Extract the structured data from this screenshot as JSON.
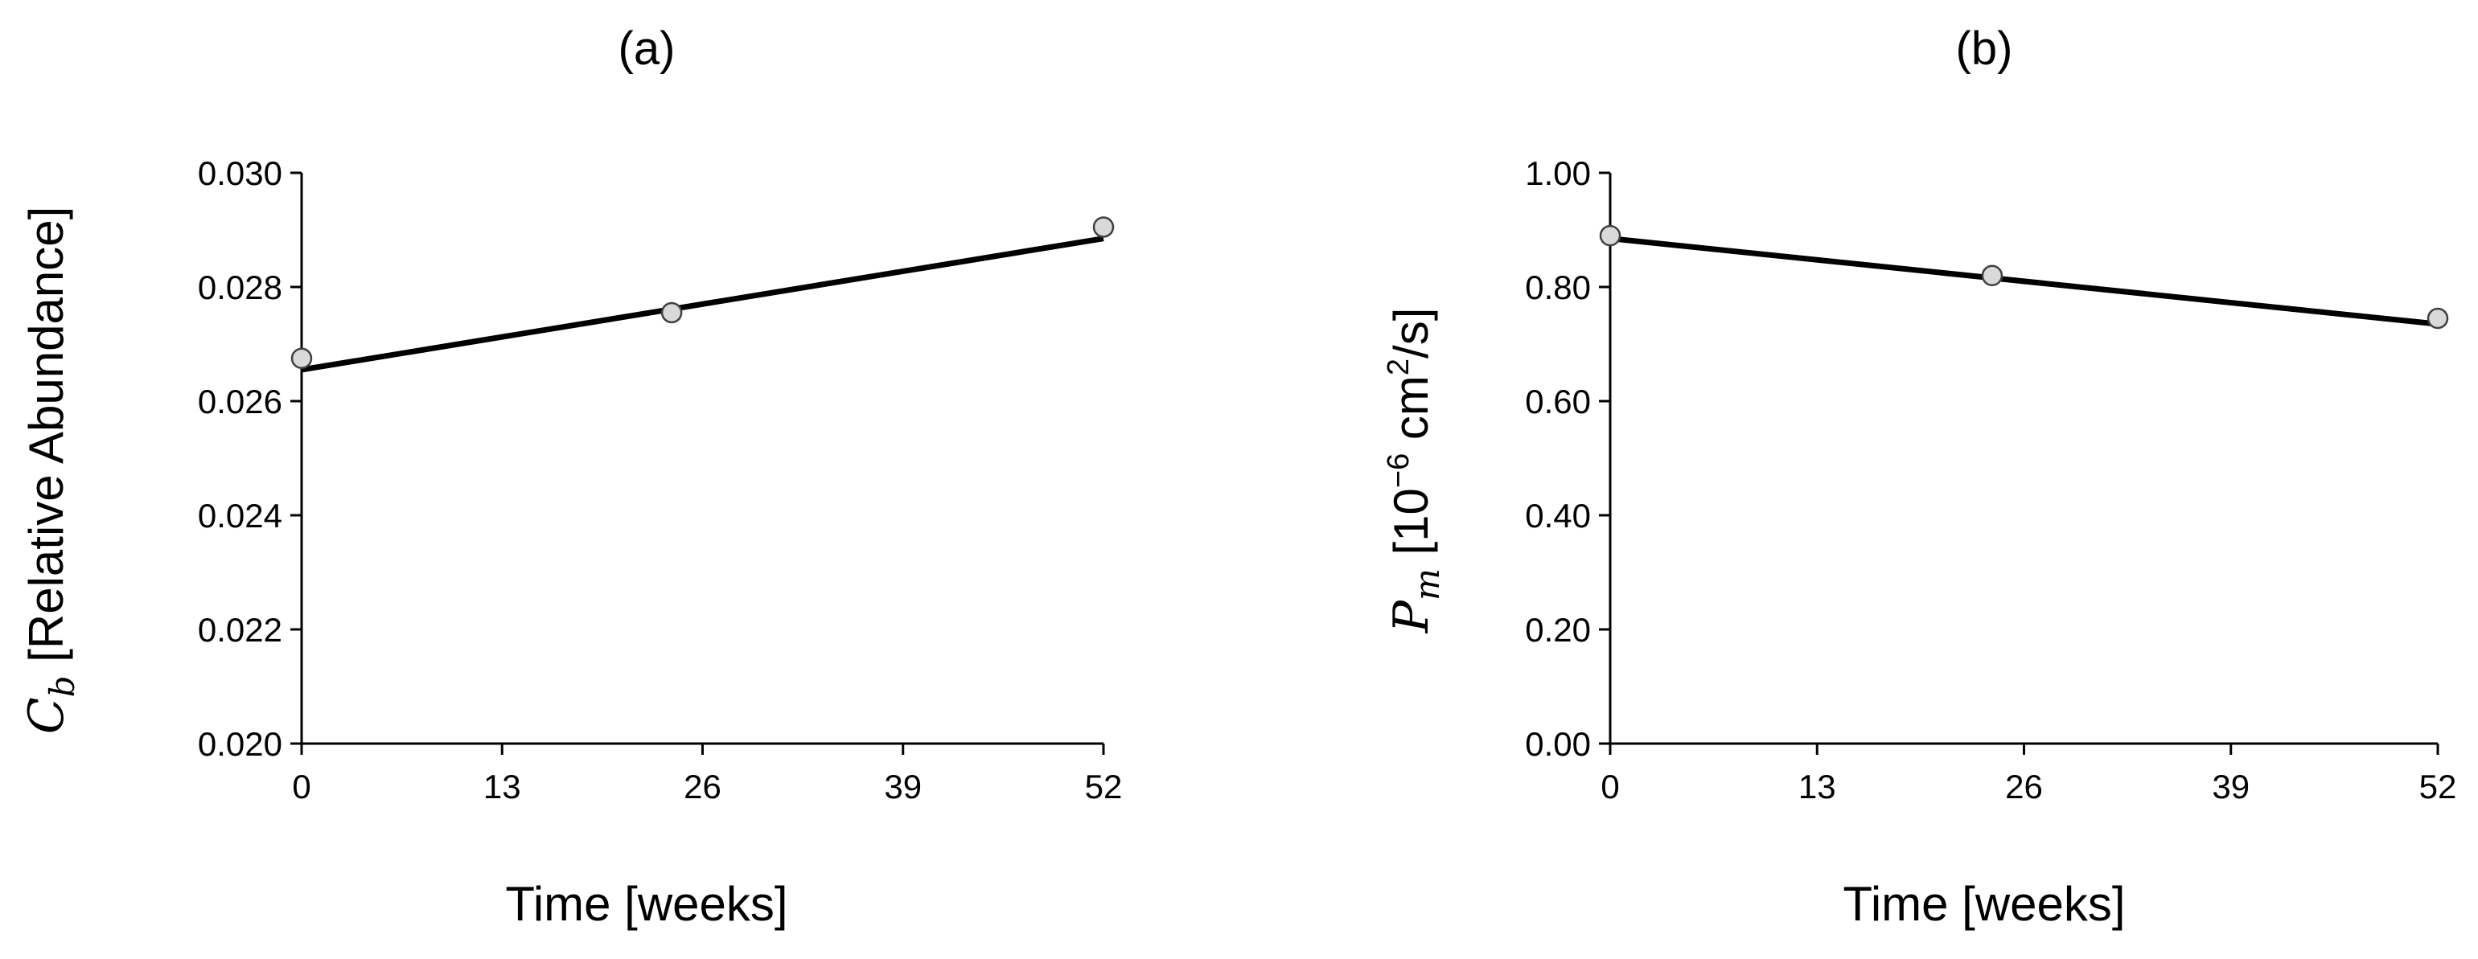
{
  "chart_data": [
    {
      "type": "scatter",
      "panel_label": "(a)",
      "title": "(a)",
      "xlabel": "Time [weeks]",
      "ylabel_symbol": "C",
      "ylabel_subscript": "b",
      "ylabel_text": " [Relative Abundance]",
      "xlim": [
        0,
        52
      ],
      "ylim": [
        0.02,
        0.03
      ],
      "xticks": [
        0,
        13,
        26,
        39,
        52
      ],
      "yticks": [
        0.02,
        0.022,
        0.024,
        0.026,
        0.028,
        0.03
      ],
      "x_tick_labels": [
        "0",
        "13",
        "26",
        "39",
        "52"
      ],
      "y_tick_labels": [
        "0.020",
        "0.022",
        "0.024",
        "0.026",
        "0.028",
        "0.030"
      ],
      "grid": false,
      "series": [
        {
          "x": [
            0,
            24,
            52
          ],
          "y": [
            0.02675,
            0.02755,
            0.02905
          ],
          "marker": "circle",
          "color": "#d9d9d9"
        }
      ],
      "fit_line": {
        "x": [
          0,
          52
        ],
        "y": [
          0.02655,
          0.02885
        ],
        "color": "#000000"
      }
    },
    {
      "type": "scatter",
      "panel_label": "(b)",
      "title": "(b)",
      "xlabel": "Time [weeks]",
      "ylabel_symbol": "P",
      "ylabel_subscript": "m",
      "ylabel_text": " [10",
      "ylabel_exp1": "−6",
      "ylabel_text2": " cm",
      "ylabel_exp2": "2",
      "ylabel_text3": "/s]",
      "xlim": [
        0,
        52
      ],
      "ylim": [
        0,
        1
      ],
      "xticks": [
        0,
        13,
        26,
        39,
        52
      ],
      "yticks": [
        0,
        0.2,
        0.4,
        0.6,
        0.8,
        1.0
      ],
      "x_tick_labels": [
        "0",
        "13",
        "26",
        "39",
        "52"
      ],
      "y_tick_labels": [
        "0.00",
        "0.20",
        "0.40",
        "0.60",
        "0.80",
        "1.00"
      ],
      "grid": false,
      "series": [
        {
          "x": [
            0,
            24,
            52
          ],
          "y": [
            0.89,
            0.82,
            0.745
          ],
          "marker": "circle",
          "color": "#d9d9d9"
        }
      ],
      "fit_line": {
        "x": [
          0,
          52
        ],
        "y": [
          0.885,
          0.735
        ],
        "color": "#000000"
      }
    }
  ]
}
